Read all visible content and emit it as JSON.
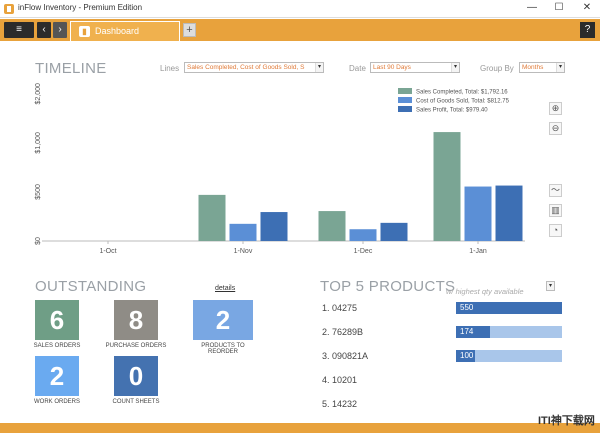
{
  "window": {
    "title": "inFlow Inventory - Premium Edition",
    "minimize": "—",
    "maximize": "☐",
    "close": "✕"
  },
  "toolbar": {
    "menu_glyph": "≡",
    "back_glyph": "‹",
    "forward_glyph": "›",
    "tab_label": "Dashboard",
    "add_tab_glyph": "+",
    "help_glyph": "?"
  },
  "timeline": {
    "title": "TIMELINE",
    "lines_label": "Lines",
    "lines_value": "Sales Completed, Cost of Goods Sold, S",
    "date_label": "Date",
    "date_value": "Last 90 Days",
    "groupby_label": "Group By",
    "groupby_value": "Months"
  },
  "chart_data": {
    "type": "bar",
    "categories": [
      "1-Oct",
      "1-Nov",
      "1-Dec",
      "1-Jan"
    ],
    "y_ticks": [
      "$0",
      "$500",
      "$1,000",
      "$2,000"
    ],
    "series": [
      {
        "name": "Sales Completed, Total: $1,792.16",
        "values": [
          0,
          470,
          305,
          1110
        ],
        "color": "#7aa594"
      },
      {
        "name": "Cost of Goods Sold, Total: $812.75",
        "values": [
          0,
          175,
          120,
          555
        ],
        "color": "#5b8fd6"
      },
      {
        "name": "Sales Profit, Total: $979.40",
        "values": [
          0,
          295,
          185,
          565
        ],
        "color": "#3d6fb4"
      }
    ],
    "ylim": [
      0,
      1600
    ],
    "legend_position": "top-right",
    "grid": false
  },
  "outstanding": {
    "title": "OUTSTANDING",
    "details_link": "details",
    "tiles": [
      {
        "value": "6",
        "label": "SALES ORDERS",
        "color": "#6f9e86"
      },
      {
        "value": "8",
        "label": "PURCHASE ORDERS",
        "color": "#8f8c86"
      },
      {
        "value": "2",
        "label": "PRODUCTS TO REORDER",
        "color": "#79a7e3"
      },
      {
        "value": "2",
        "label": "WORK ORDERS",
        "color": "#6aaaf0"
      },
      {
        "value": "0",
        "label": "COUNT SHEETS",
        "color": "#4472b0"
      }
    ]
  },
  "top_products": {
    "title": "TOP 5 PRODUCTS",
    "filter_placeholder": "w/ highest qty available",
    "items": [
      {
        "name": "1. 04275",
        "value": "550",
        "fraction": 1.0
      },
      {
        "name": "2. 76289B",
        "value": "174",
        "fraction": 0.32
      },
      {
        "name": "3. 090821A",
        "value": "100",
        "fraction": 0.18
      },
      {
        "name": "4. 10201",
        "value": "",
        "fraction": 0
      },
      {
        "name": "5. 14232",
        "value": "",
        "fraction": 0
      }
    ]
  },
  "watermark": "ITI神下载网"
}
